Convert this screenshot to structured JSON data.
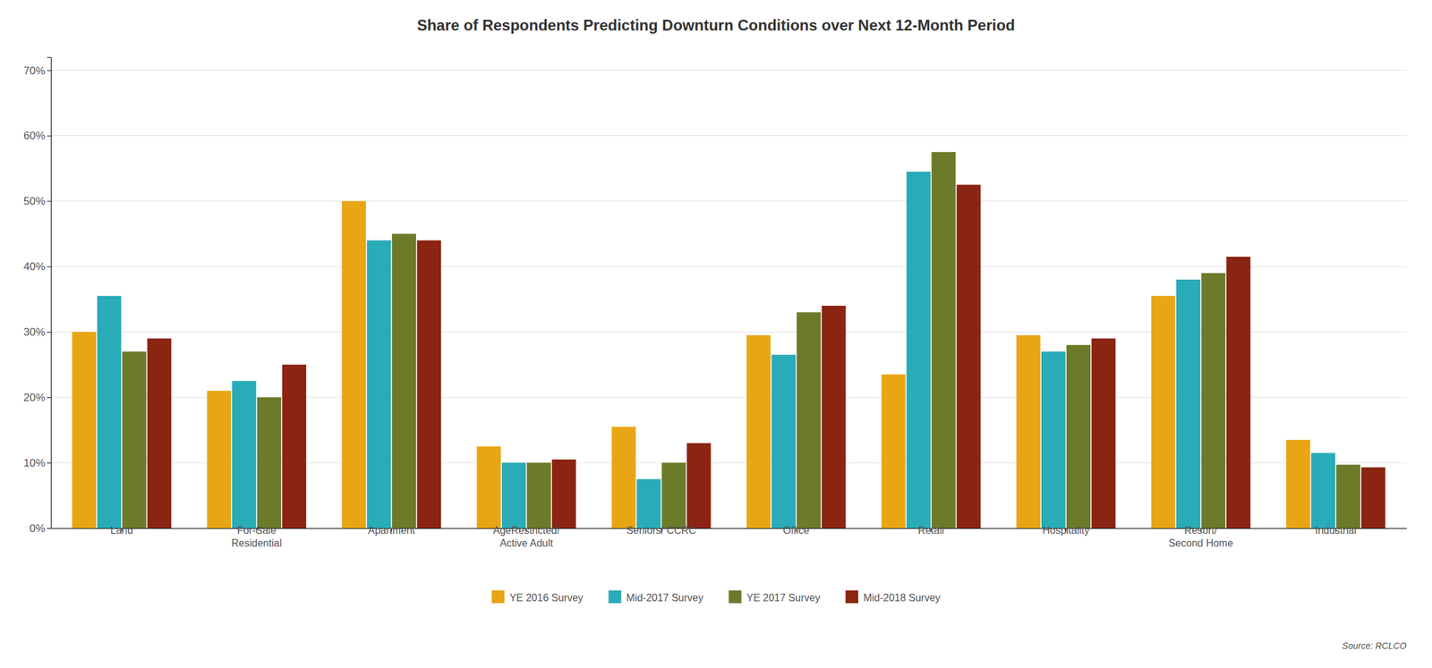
{
  "chart_data": {
    "type": "bar",
    "title": "Share of Respondents Predicting Downturn Conditions over Next 12-Month Period",
    "categories": [
      "Land",
      "For-Sale\nResidential",
      "Apartment",
      "AgeRestricted/\nActive Adult",
      "Seniors/ CCRC",
      "Office",
      "Retail",
      "Hospitality",
      "Resort/\nSecond Home",
      "Industrial"
    ],
    "series": [
      {
        "name": "YE 2016 Survey",
        "color": "#E8A614",
        "values": [
          0.3,
          0.21,
          0.5,
          0.125,
          0.155,
          0.295,
          0.235,
          0.295,
          0.355,
          0.135
        ]
      },
      {
        "name": "Mid-2017 Survey",
        "color": "#29ABB8",
        "values": [
          0.355,
          0.225,
          0.44,
          0.1,
          0.075,
          0.265,
          0.545,
          0.27,
          0.38,
          0.115
        ]
      },
      {
        "name": "YE 2017 Survey",
        "color": "#6B7B2A",
        "values": [
          0.27,
          0.2,
          0.45,
          0.1,
          0.1,
          0.33,
          0.575,
          0.28,
          0.39,
          0.097
        ]
      },
      {
        "name": "Mid-2018 Survey",
        "color": "#8B2412",
        "values": [
          0.29,
          0.25,
          0.44,
          0.105,
          0.13,
          0.34,
          0.525,
          0.29,
          0.415,
          0.093
        ]
      }
    ],
    "ylim": [
      0,
      0.72
    ],
    "yticks": [
      {
        "value": 0.0,
        "label": "0%"
      },
      {
        "value": 0.1,
        "label": "10%"
      },
      {
        "value": 0.2,
        "label": "20%"
      },
      {
        "value": 0.3,
        "label": "30%"
      },
      {
        "value": 0.4,
        "label": "40%"
      },
      {
        "value": 0.5,
        "label": "50%"
      },
      {
        "value": 0.6,
        "label": "60%"
      },
      {
        "value": 0.7,
        "label": "70%"
      }
    ],
    "grid": true,
    "legend": "bottom",
    "annotations": [
      "Source: RCLCO"
    ]
  }
}
